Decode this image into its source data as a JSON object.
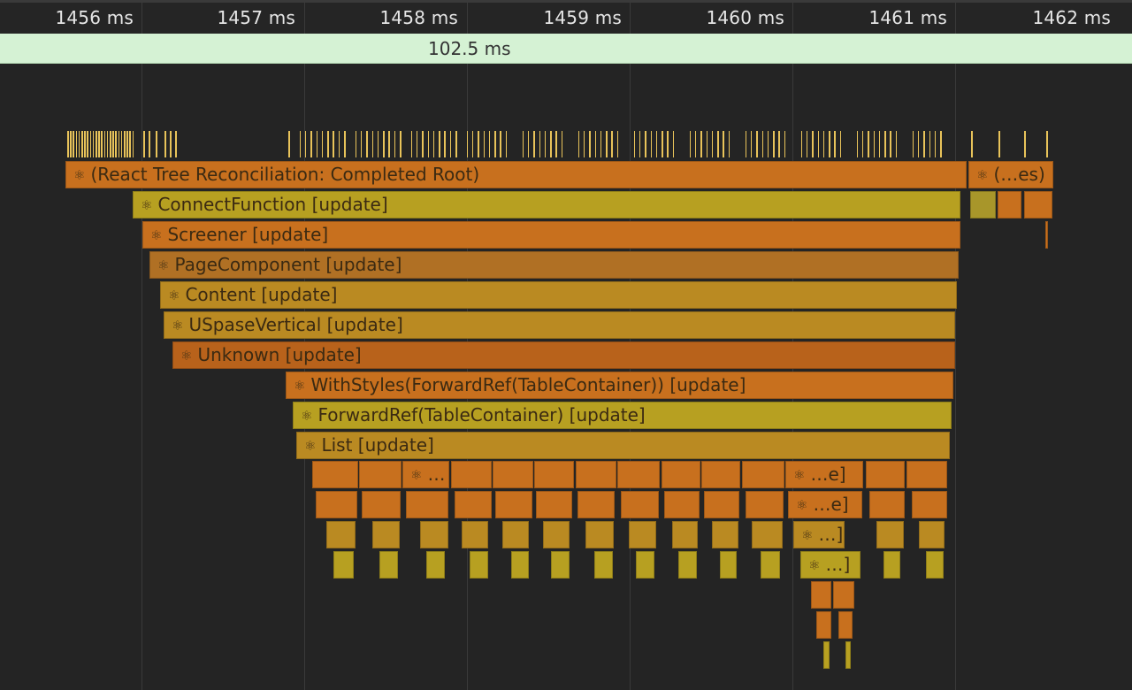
{
  "timeline": {
    "ticks": [
      "1456 ms",
      "1457 ms",
      "1458 ms",
      "1459 ms",
      "1460 ms",
      "1461 ms",
      "1462 ms"
    ],
    "selection_duration": "102.5 ms"
  },
  "flame": {
    "atom_icon": "react-atom-icon",
    "labels": {
      "root": "(React Tree Reconciliation: Completed Root)",
      "root_next": "(…es)",
      "connect": "ConnectFunction [update]",
      "screener": "Screener [update]",
      "page": "PageComponent [update]",
      "content": "Content [update]",
      "uspase": "USpaseVertical [update]",
      "unknown": "Unknown [update]",
      "withstyles": "WithStyles(ForwardRef(TableContainer)) [update]",
      "forwardref": "ForwardRef(TableContainer) [update]",
      "list": "List [update]",
      "child_a": "…",
      "child_b": "…e]",
      "child_c": "…e]",
      "child_d": "…]",
      "child_e": "…]"
    },
    "colors": {
      "orange": "#c8701e",
      "dark_orange": "#b8621b",
      "amber": "#ba8a22",
      "yellow": "#b7a021",
      "olive": "#a8962a",
      "muted_orange": "#b07024"
    }
  }
}
